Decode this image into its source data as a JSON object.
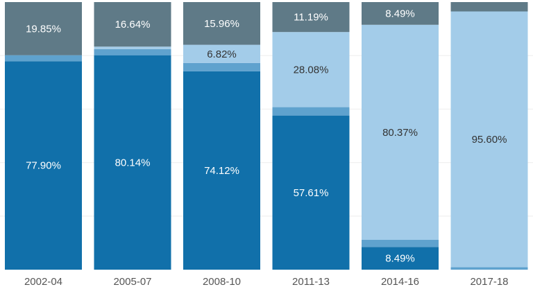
{
  "chart_data": {
    "type": "bar",
    "stacked": "100%",
    "categories": [
      "2002-04",
      "2005-07",
      "2008-10",
      "2011-13",
      "2014-16",
      "2017-18"
    ],
    "ylim": [
      0,
      100
    ],
    "grid": true,
    "legend": "none",
    "series": [
      {
        "color": "#1170aa",
        "values": [
          77.9,
          80.14,
          74.12,
          57.61,
          8.49,
          0.0
        ],
        "labels": [
          "77.90%",
          "80.14%",
          "74.12%",
          "57.61%",
          "8.49%",
          ""
        ]
      },
      {
        "color": "#5fa2ce",
        "values": [
          2.25,
          2.3,
          3.1,
          3.12,
          2.65,
          0.9
        ],
        "labels": [
          "",
          "",
          "",
          "",
          "",
          ""
        ]
      },
      {
        "color": "#a3cce9",
        "values": [
          0.0,
          0.92,
          6.82,
          28.08,
          80.37,
          95.6
        ],
        "labels": [
          "",
          "",
          "6.82%",
          "28.08%",
          "80.37%",
          "95.60%"
        ]
      },
      {
        "color": "#5f7a87",
        "values": [
          19.85,
          16.64,
          15.96,
          11.19,
          8.49,
          3.5
        ],
        "labels": [
          "19.85%",
          "16.64%",
          "15.96%",
          "11.19%",
          "8.49%",
          ""
        ]
      }
    ]
  }
}
